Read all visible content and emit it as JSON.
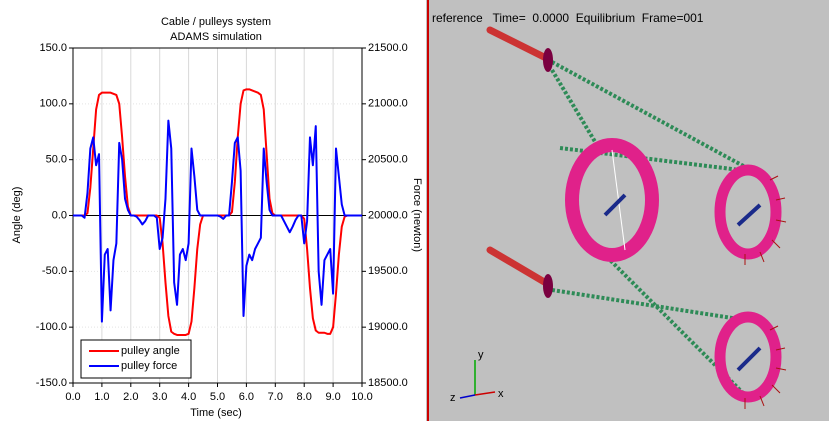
{
  "chart_data": {
    "type": "line",
    "title": "Cable / pulleys system",
    "subtitle": "ADAMS simulation",
    "x_label": "Time (sec)",
    "y_label": "Angle (deg)",
    "y2_label": "Force (newton)",
    "xlim": [
      0,
      10
    ],
    "ylim": [
      -150,
      150
    ],
    "y2lim": [
      18500,
      21500
    ],
    "xticks": [
      {
        "value": 0,
        "label": "0.0"
      },
      {
        "value": 1,
        "label": "1.0"
      },
      {
        "value": 2,
        "label": "2.0"
      },
      {
        "value": 3,
        "label": "3.0"
      },
      {
        "value": 4,
        "label": "4.0"
      },
      {
        "value": 5,
        "label": "5.0"
      },
      {
        "value": 6,
        "label": "6.0"
      },
      {
        "value": 7,
        "label": "7.0"
      },
      {
        "value": 8,
        "label": "8.0"
      },
      {
        "value": 9,
        "label": "9.0"
      },
      {
        "value": 10,
        "label": "10.0"
      }
    ],
    "yticks": [
      {
        "value": -150,
        "label": "-150.0"
      },
      {
        "value": -100,
        "label": "-100.0"
      },
      {
        "value": -50,
        "label": "-50.0"
      },
      {
        "value": 0,
        "label": "0.0"
      },
      {
        "value": 50,
        "label": "50.0"
      },
      {
        "value": 100,
        "label": "100.0"
      },
      {
        "value": 150,
        "label": "150.0"
      }
    ],
    "y2ticks": [
      {
        "value": 18500,
        "label": "18500.0"
      },
      {
        "value": 19000,
        "label": "19000.0"
      },
      {
        "value": 19500,
        "label": "19500.0"
      },
      {
        "value": 20000,
        "label": "20000.0"
      },
      {
        "value": 20500,
        "label": "20500.0"
      },
      {
        "value": 21000,
        "label": "21000.0"
      },
      {
        "value": 21500,
        "label": "21500.0"
      }
    ],
    "grid": true,
    "legend": "lower left",
    "x": [
      0,
      0.1,
      0.2,
      0.3,
      0.4,
      0.5,
      0.6,
      0.7,
      0.8,
      0.9,
      1,
      1.1,
      1.2,
      1.3,
      1.4,
      1.5,
      1.6,
      1.7,
      1.8,
      1.9,
      2,
      2.1,
      2.2,
      2.3,
      2.4,
      2.5,
      2.6,
      2.7,
      2.8,
      2.9,
      3,
      3.1,
      3.2,
      3.3,
      3.4,
      3.5,
      3.6,
      3.7,
      3.8,
      3.9,
      4,
      4.1,
      4.2,
      4.3,
      4.4,
      4.5,
      4.6,
      4.7,
      4.8,
      4.9,
      5,
      5.1,
      5.2,
      5.3,
      5.4,
      5.5,
      5.6,
      5.7,
      5.8,
      5.9,
      6,
      6.1,
      6.2,
      6.3,
      6.4,
      6.5,
      6.6,
      6.7,
      6.8,
      6.9,
      7,
      7.1,
      7.2,
      7.3,
      7.4,
      7.5,
      7.6,
      7.7,
      7.8,
      7.9,
      8,
      8.1,
      8.2,
      8.3,
      8.4,
      8.5,
      8.6,
      8.7,
      8.8,
      8.9,
      9,
      9.1,
      9.2,
      9.3,
      9.4,
      9.5,
      9.6,
      9.7,
      9.8,
      9.9,
      10
    ],
    "series": [
      {
        "name": "pulley angle",
        "color": "#ff0000",
        "axis": "y",
        "values": [
          0,
          0,
          0,
          0,
          0,
          2,
          25,
          60,
          95,
          108,
          110,
          110,
          110,
          110,
          109,
          108,
          100,
          70,
          35,
          8,
          0,
          0,
          0,
          0,
          0,
          0,
          0,
          0,
          0,
          0,
          -2,
          -25,
          -60,
          -90,
          -104,
          -106,
          -107,
          -107,
          -107,
          -107,
          -106,
          -95,
          -65,
          -30,
          -8,
          0,
          0,
          0,
          0,
          0,
          0,
          0,
          0,
          0,
          0,
          3,
          30,
          70,
          100,
          112,
          113,
          113,
          112,
          111,
          110,
          108,
          95,
          55,
          15,
          2,
          0,
          0,
          0,
          0,
          0,
          0,
          0,
          0,
          0,
          0,
          -3,
          -30,
          -65,
          -92,
          -103,
          -105,
          -105,
          -105,
          -106,
          -106,
          -100,
          -70,
          -35,
          -10,
          -1,
          0,
          0,
          0,
          0,
          0,
          0
        ]
      },
      {
        "name": "pulley force",
        "color": "#0000ff",
        "axis": "y2",
        "values": [
          20000,
          20000,
          20000,
          20000,
          19980,
          20200,
          20600,
          20700,
          20450,
          20550,
          19050,
          19650,
          19700,
          19150,
          19600,
          19750,
          20650,
          20500,
          20150,
          20050,
          20000,
          20000,
          19990,
          19960,
          19920,
          19950,
          20000,
          20000,
          20000,
          19980,
          19700,
          19800,
          20150,
          20850,
          20600,
          19400,
          19200,
          19650,
          19700,
          19600,
          19750,
          20600,
          20350,
          20050,
          20000,
          20000,
          20000,
          20000,
          20000,
          20000,
          20000,
          19990,
          19970,
          20000,
          20000,
          20300,
          20650,
          20700,
          20400,
          19100,
          19550,
          19650,
          19600,
          19700,
          19750,
          19800,
          20600,
          20300,
          20050,
          20000,
          20000,
          20000,
          20000,
          19950,
          19900,
          19850,
          19900,
          19960,
          20000,
          20000,
          19750,
          19950,
          20700,
          20450,
          20800,
          19500,
          19200,
          19600,
          19650,
          19700,
          19300,
          20600,
          20350,
          20100,
          20000,
          20000,
          20000,
          20000,
          20000,
          20000,
          20000
        ]
      }
    ]
  },
  "viewport": {
    "status": "reference   Time=  0.0000  Equilibrium  Frame=001",
    "triad": {
      "x": "x",
      "y": "y",
      "z": "z"
    }
  }
}
